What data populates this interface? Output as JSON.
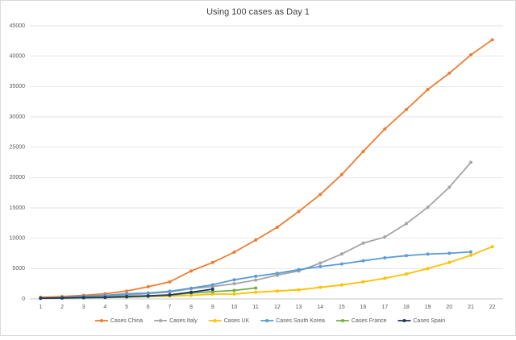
{
  "chart_data": {
    "type": "line",
    "title": "Using 100 cases as Day 1",
    "categories": [
      1,
      2,
      3,
      4,
      5,
      6,
      7,
      8,
      9,
      10,
      11,
      12,
      13,
      14,
      15,
      16,
      17,
      18,
      19,
      20,
      21,
      22
    ],
    "ylim": [
      0,
      45000
    ],
    "yticks": [
      0,
      5000,
      10000,
      15000,
      20000,
      25000,
      30000,
      35000,
      40000,
      45000
    ],
    "grid": true,
    "legend": "bottom",
    "series": [
      {
        "name": "Cases China",
        "color": "#ed7d31",
        "values": [
          280,
          400,
          600,
          850,
          1300,
          2000,
          2800,
          4600,
          6000,
          7700,
          9700,
          11800,
          14400,
          17200,
          20500,
          24300,
          28000,
          31200,
          34500,
          37200,
          40200,
          42700
        ]
      },
      {
        "name": "Cases Italy",
        "color": "#a5a5a5",
        "values": [
          150,
          230,
          320,
          450,
          650,
          890,
          1130,
          1700,
          2040,
          2500,
          3100,
          3900,
          4600,
          5900,
          7400,
          9200,
          10200,
          12400,
          15100,
          18400,
          22500,
          null
        ]
      },
      {
        "name": "Cases UK",
        "color": "#ffc000",
        "values": [
          110,
          160,
          200,
          270,
          320,
          380,
          460,
          590,
          800,
          800,
          1100,
          1300,
          1500,
          1900,
          2300,
          2800,
          3400,
          4100,
          5000,
          6000,
          7200,
          8600
        ]
      },
      {
        "name": "Cases South Korea",
        "color": "#5b9bd5",
        "values": [
          104,
          204,
          433,
          602,
          833,
          977,
          1261,
          1766,
          2337,
          3150,
          3736,
          4212,
          4812,
          5328,
          5766,
          6284,
          6767,
          7134,
          7382,
          7513,
          7755,
          null
        ]
      },
      {
        "name": "Cases France",
        "color": "#70ad47",
        "values": [
          100,
          130,
          190,
          210,
          280,
          420,
          610,
          950,
          1200,
          1400,
          1800,
          null,
          null,
          null,
          null,
          null,
          null,
          null,
          null,
          null,
          null,
          null
        ]
      },
      {
        "name": "Cases Spain",
        "color": "#203864",
        "values": [
          120,
          165,
          220,
          260,
          400,
          500,
          670,
          1100,
          1600,
          null,
          null,
          null,
          null,
          null,
          null,
          null,
          null,
          null,
          null,
          null,
          null,
          null
        ]
      }
    ]
  }
}
